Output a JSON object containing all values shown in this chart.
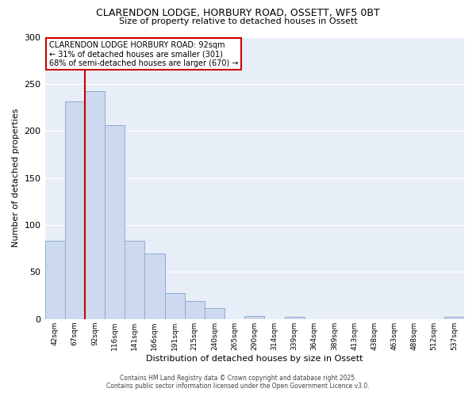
{
  "title": "CLARENDON LODGE, HORBURY ROAD, OSSETT, WF5 0BT",
  "subtitle": "Size of property relative to detached houses in Ossett",
  "xlabel": "Distribution of detached houses by size in Ossett",
  "ylabel": "Number of detached properties",
  "bar_labels": [
    "42sqm",
    "67sqm",
    "92sqm",
    "116sqm",
    "141sqm",
    "166sqm",
    "191sqm",
    "215sqm",
    "240sqm",
    "265sqm",
    "290sqm",
    "314sqm",
    "339sqm",
    "364sqm",
    "389sqm",
    "413sqm",
    "438sqm",
    "463sqm",
    "488sqm",
    "512sqm",
    "537sqm"
  ],
  "bar_values": [
    83,
    231,
    242,
    206,
    83,
    70,
    28,
    19,
    12,
    0,
    3,
    0,
    2,
    0,
    0,
    0,
    0,
    0,
    0,
    0,
    2
  ],
  "bar_color": "#ccd9ee",
  "bar_edge_color": "#8eadd4",
  "vline_x": 2,
  "vline_color": "#cc0000",
  "annotation_title": "CLARENDON LODGE HORBURY ROAD: 92sqm",
  "annotation_line1": "← 31% of detached houses are smaller (301)",
  "annotation_line2": "68% of semi-detached houses are larger (670) →",
  "annotation_box_color": "#ffffff",
  "annotation_box_edge": "#cc0000",
  "footer1": "Contains HM Land Registry data © Crown copyright and database right 2025.",
  "footer2": "Contains public sector information licensed under the Open Government Licence v3.0.",
  "ylim": [
    0,
    300
  ],
  "yticks": [
    0,
    50,
    100,
    150,
    200,
    250,
    300
  ],
  "plot_bg_color": "#e8eef7",
  "fig_bg_color": "#ffffff",
  "grid_color": "#ffffff"
}
